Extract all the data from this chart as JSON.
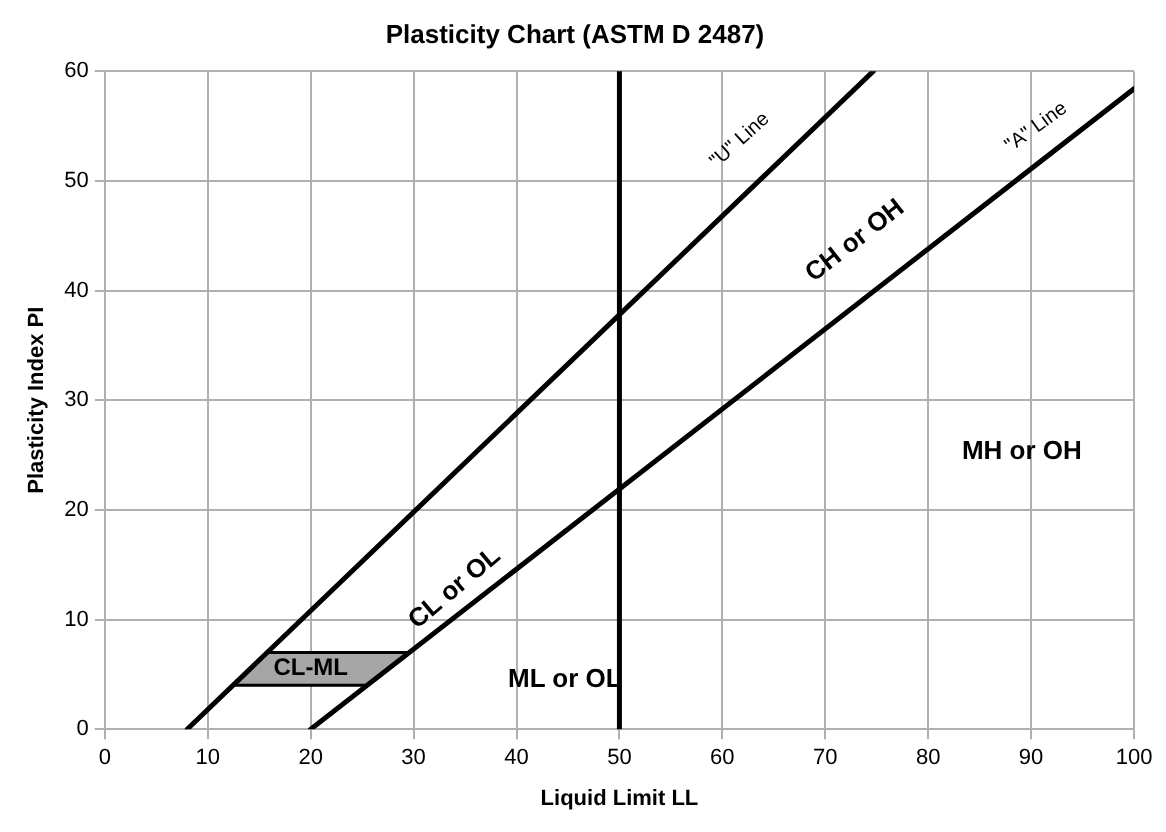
{
  "chart_data": {
    "type": "line",
    "title": "Plasticity Chart (ASTM D 2487)",
    "xlabel": "Liquid Limit LL",
    "ylabel": "Plasticity Index PI",
    "series": [
      {
        "type": "line",
        "color": "#000000",
        "x": [
          8,
          74.67
        ],
        "values": [
          0,
          60
        ]
      },
      {
        "type": "line",
        "color": "#000000",
        "x": [
          20,
          100
        ],
        "values": [
          0,
          58.4
        ]
      },
      {
        "type": "area",
        "color": "#a6a6a6",
        "x": [
          12.44,
          15.78,
          29.59,
          25.48,
          12.44
        ],
        "values": [
          4,
          7,
          7,
          4,
          4
        ]
      }
    ],
    "ref_lines": [
      {
        "axis": "x",
        "value": 50,
        "color": "#000000"
      }
    ],
    "annotations": [
      "\"U\" Line",
      "\"A\" Line",
      "CH or OH",
      "CL or OL",
      "ML or OL",
      "MH or OH",
      "CL-ML"
    ],
    "xlim": [
      0,
      100
    ],
    "xticks": [
      0,
      10,
      20,
      30,
      40,
      50,
      60,
      70,
      80,
      90,
      100
    ],
    "ylim": [
      0,
      60
    ],
    "yticks": [
      0,
      10,
      20,
      30,
      40,
      50,
      60
    ],
    "grid": true,
    "legend": false,
    "marker": "none"
  }
}
